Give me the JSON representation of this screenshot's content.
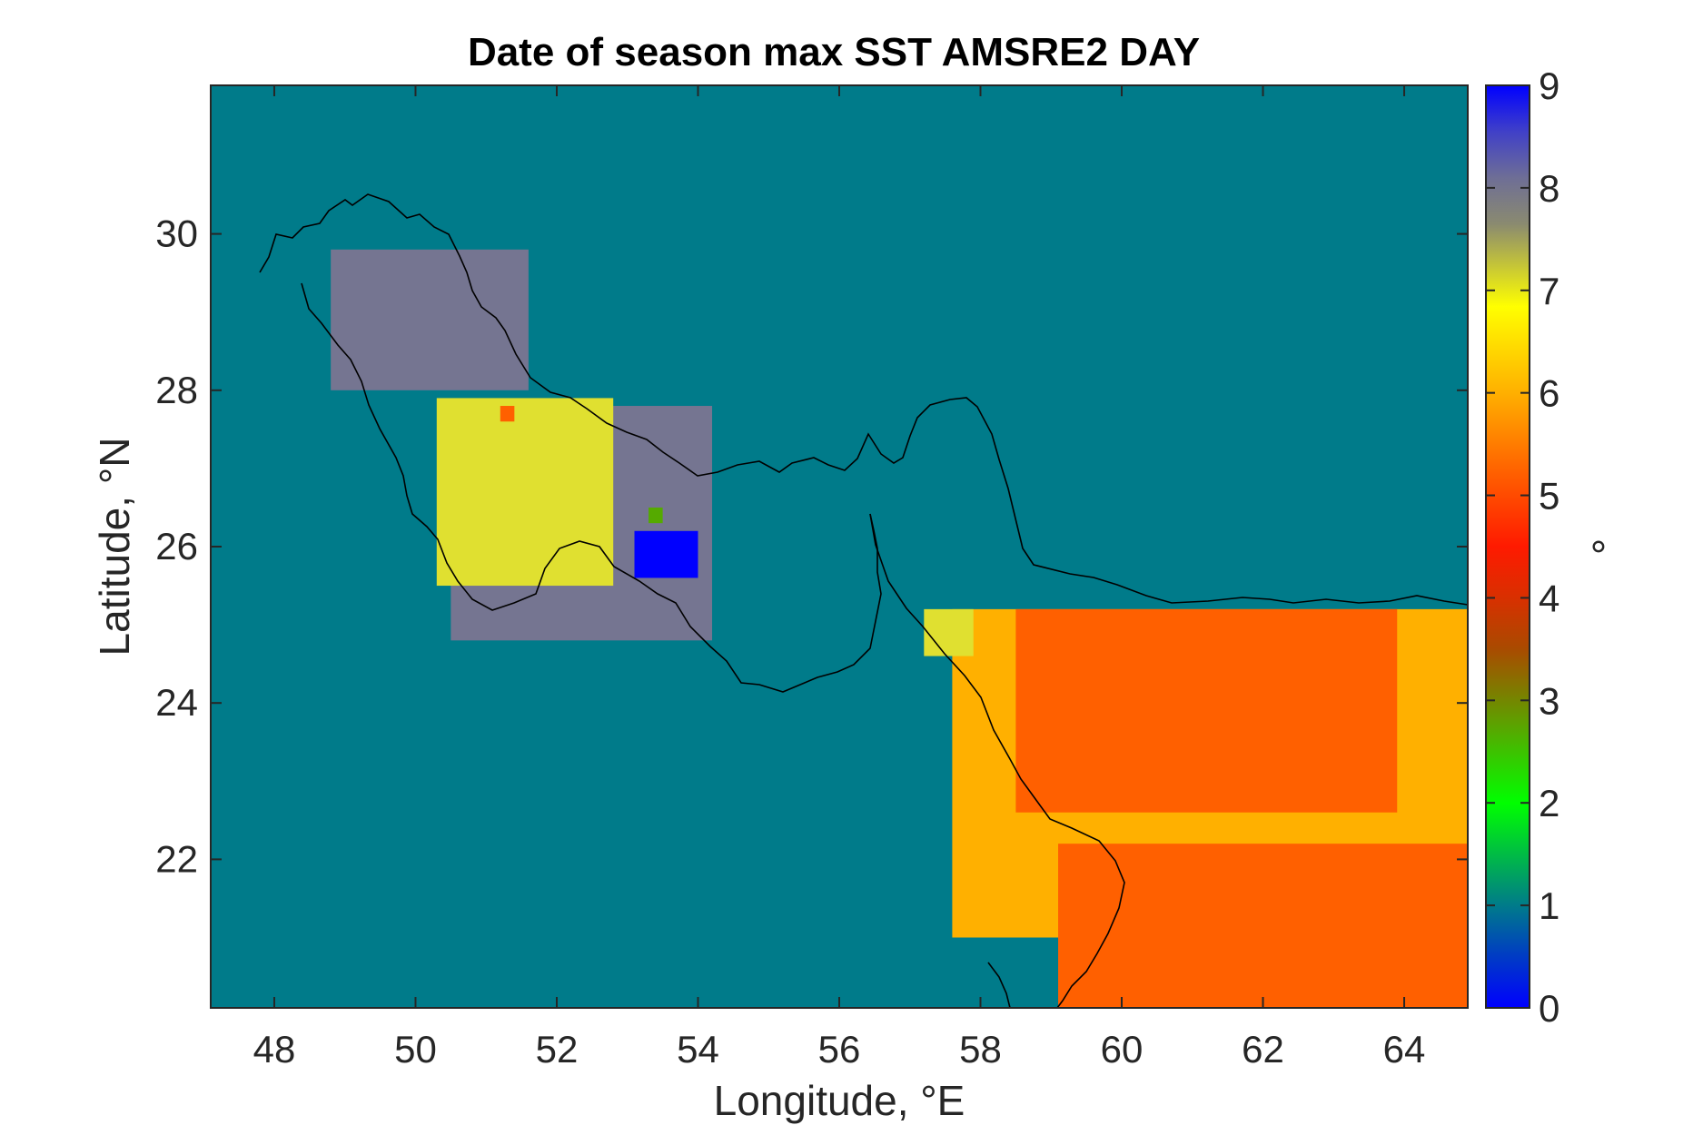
{
  "chart_data": {
    "type": "heatmap",
    "title": "Date of season max SST AMSRE2 DAY",
    "xlabel": "Longitude, °E",
    "ylabel": "Latitude, °N",
    "xlim": [
      47.1,
      64.9
    ],
    "ylim": [
      20.1,
      31.9
    ],
    "xticks": [
      "48",
      "50",
      "52",
      "54",
      "56",
      "58",
      "60",
      "62",
      "64"
    ],
    "yticks": [
      "22",
      "24",
      "26",
      "28",
      "30"
    ],
    "background_value": 1,
    "colorbar": {
      "label": "°",
      "range": [
        0,
        9
      ],
      "ticks": [
        "0",
        "1",
        "2",
        "3",
        "4",
        "5",
        "6",
        "7",
        "8",
        "9"
      ],
      "colors": [
        "#0000ff",
        "#007b8a",
        "#00ff00",
        "#55aa00",
        "#ff2a00",
        "#ff6000",
        "#ffb000",
        "#e0e030",
        "#757591",
        "#0000ff"
      ]
    },
    "regions": [
      {
        "value": 8,
        "lon_range": [
          48.8,
          51.6
        ],
        "lat_range": [
          28.0,
          29.8
        ]
      },
      {
        "value": 8,
        "lon_range": [
          50.5,
          54.2
        ],
        "lat_range": [
          24.8,
          27.8
        ]
      },
      {
        "value": 9,
        "lon_range": [
          53.1,
          54.0
        ],
        "lat_range": [
          25.6,
          26.2
        ]
      },
      {
        "value": 7,
        "lon_range": [
          50.3,
          52.8
        ],
        "lat_range": [
          25.5,
          27.9
        ]
      },
      {
        "value": 3,
        "lon_range": [
          53.3,
          53.5
        ],
        "lat_range": [
          26.3,
          26.5
        ]
      },
      {
        "value": 5,
        "lon_range": [
          51.2,
          51.4
        ],
        "lat_range": [
          27.6,
          27.8
        ]
      },
      {
        "value": 6,
        "lon_range": [
          57.6,
          64.9
        ],
        "lat_range": [
          21.0,
          25.2
        ]
      },
      {
        "value": 7,
        "lon_range": [
          57.2,
          57.9
        ],
        "lat_range": [
          24.6,
          25.2
        ]
      },
      {
        "value": 5,
        "lon_range": [
          59.1,
          64.9
        ],
        "lat_range": [
          20.1,
          22.2
        ]
      },
      {
        "value": 5,
        "lon_range": [
          58.5,
          63.9
        ],
        "lat_range": [
          22.6,
          25.2
        ]
      }
    ],
    "grid": false
  }
}
